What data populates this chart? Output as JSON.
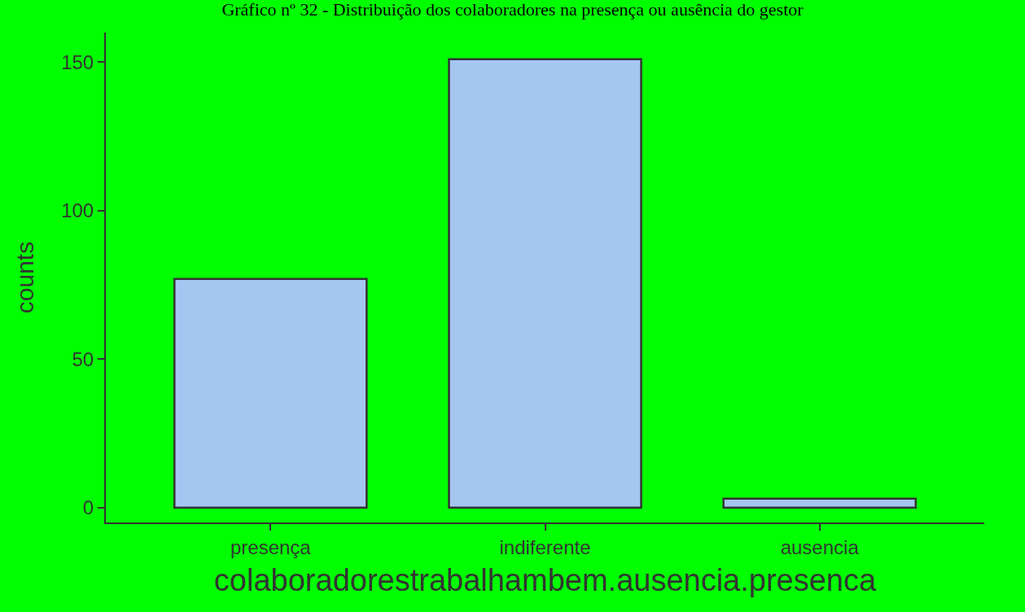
{
  "chart_data": {
    "type": "bar",
    "title": "Gráfico nº 32 - Distribuição dos colaboradores na presença ou ausência do gestor",
    "xlabel": "colaboradorestrabalhambem.ausencia.presenca",
    "ylabel": "counts",
    "categories": [
      "presença",
      "indiferente",
      "ausencia"
    ],
    "values": [
      77,
      151,
      3
    ],
    "color": "#a6c6f2",
    "ylim": [
      -5,
      160
    ],
    "yticks": [
      0,
      50,
      100,
      150
    ],
    "grid": false
  }
}
